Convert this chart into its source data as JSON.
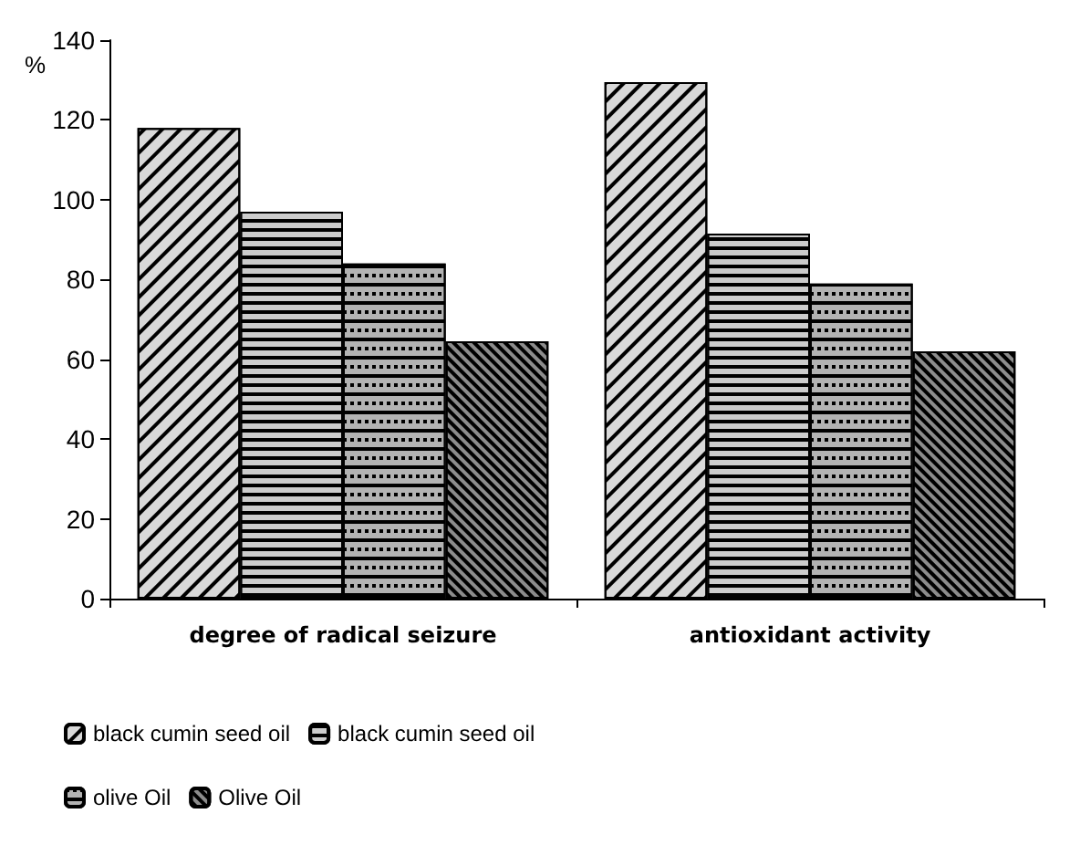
{
  "chart_data": {
    "type": "bar",
    "ylabel": "%",
    "categories": [
      "degree of radical seizure",
      "antioxidant activity"
    ],
    "series": [
      {
        "name": "black cumin seed oil",
        "color": "#d9d9d9",
        "values": [
          118,
          129.5
        ]
      },
      {
        "name": "black cumin seed oil",
        "color": "#cccccc",
        "values": [
          97,
          91.5
        ]
      },
      {
        "name": "olive Oil",
        "color": "#b3b3b3",
        "values": [
          84,
          79
        ]
      },
      {
        "name": "Olive Oil",
        "color": "#8c8c8c",
        "values": [
          64.5,
          62
        ]
      }
    ],
    "ylim": [
      0,
      140
    ],
    "yticks": [
      0,
      20,
      40,
      60,
      80,
      100,
      120,
      140
    ],
    "grid": false,
    "legend": "bottom"
  }
}
